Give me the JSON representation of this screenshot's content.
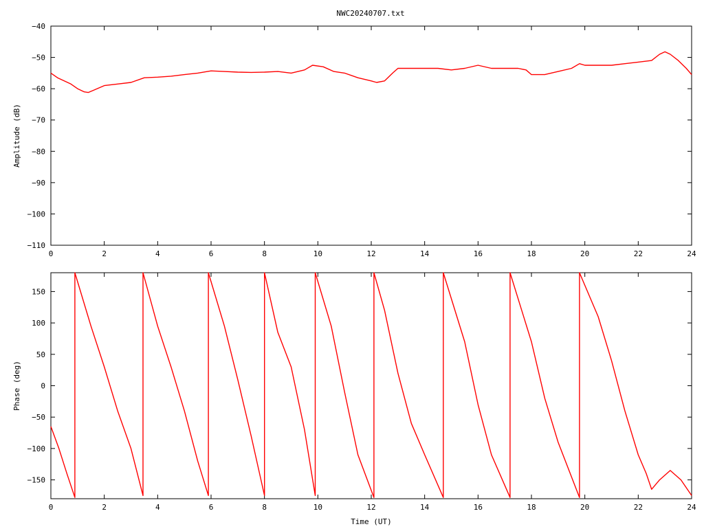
{
  "title": "NWC20240707.txt",
  "series_color": "#ff0000",
  "chart_data": [
    {
      "type": "line",
      "title": "NWC20240707.txt",
      "xlabel": "",
      "ylabel": "Amplitude (dB)",
      "xlim": [
        0,
        24
      ],
      "ylim": [
        -110,
        -40
      ],
      "xticks": [
        0,
        2,
        4,
        6,
        8,
        10,
        12,
        14,
        16,
        18,
        20,
        22,
        24
      ],
      "yticks": [
        -40,
        -50,
        -60,
        -70,
        -80,
        -90,
        -100,
        -110
      ],
      "ytick_labels": [
        "−40",
        "−50",
        "−60",
        "−70",
        "−80",
        "−90",
        "−100",
        "−110"
      ],
      "grid": false,
      "x": [
        0,
        0.25,
        0.5,
        0.75,
        1.0,
        1.25,
        1.4,
        1.6,
        2.0,
        2.5,
        3.0,
        3.5,
        4.0,
        4.5,
        5.0,
        5.5,
        6.0,
        6.5,
        7.0,
        7.5,
        8.0,
        8.5,
        9.0,
        9.5,
        9.8,
        10.2,
        10.6,
        11.0,
        11.5,
        12.0,
        12.2,
        12.5,
        12.8,
        13.0,
        13.5,
        14.0,
        14.5,
        15.0,
        15.5,
        16.0,
        16.5,
        17.0,
        17.5,
        17.8,
        18.0,
        18.5,
        19.0,
        19.5,
        19.8,
        20.0,
        20.5,
        21.0,
        21.5,
        22.0,
        22.5,
        22.8,
        23.0,
        23.2,
        23.5,
        23.8,
        24.0
      ],
      "values": [
        -55,
        -56.5,
        -57.5,
        -58.5,
        -60,
        -61,
        -61.2,
        -60.5,
        -59,
        -58.5,
        -58,
        -56.5,
        -56.3,
        -56,
        -55.5,
        -55,
        -54.3,
        -54.5,
        -54.7,
        -54.8,
        -54.7,
        -54.5,
        -55,
        -54,
        -52.5,
        -53,
        -54.5,
        -55,
        -56.5,
        -57.5,
        -58,
        -57.5,
        -55,
        -53.5,
        -53.5,
        -53.5,
        -53.5,
        -54,
        -53.5,
        -52.5,
        -53.5,
        -53.5,
        -53.5,
        -54,
        -55.5,
        -55.5,
        -54.5,
        -53.5,
        -52,
        -52.5,
        -52.5,
        -52.5,
        -52,
        -51.5,
        -51,
        -49,
        -48.2,
        -49,
        -51,
        -53.5,
        -55.5
      ]
    },
    {
      "type": "line",
      "title": "",
      "xlabel": "Time (UT)",
      "ylabel": "Phase (deg)",
      "xlim": [
        0,
        24
      ],
      "ylim": [
        -180,
        180
      ],
      "xticks": [
        0,
        2,
        4,
        6,
        8,
        10,
        12,
        14,
        16,
        18,
        20,
        22,
        24
      ],
      "yticks": [
        150,
        100,
        50,
        0,
        -50,
        -100,
        -150
      ],
      "ytick_labels": [
        "150",
        "100",
        "50",
        "0",
        "−50",
        "−100",
        "−150"
      ],
      "grid": false,
      "wraps_at_degrees": [
        -180,
        180
      ],
      "x": [
        0,
        0.3,
        0.6,
        0.9,
        0.9,
        1.5,
        2.0,
        2.5,
        3.0,
        3.45,
        3.45,
        4.0,
        4.5,
        5.0,
        5.5,
        5.9,
        5.9,
        6.5,
        7.0,
        7.5,
        8.0,
        8.0,
        8.5,
        9.0,
        9.5,
        9.9,
        9.9,
        10.5,
        11.0,
        11.5,
        12.1,
        12.1,
        12.5,
        13.0,
        13.5,
        14.0,
        14.7,
        14.7,
        15.5,
        16.0,
        16.5,
        17.2,
        17.2,
        18.0,
        18.5,
        19.0,
        19.8,
        19.8,
        20.5,
        21.0,
        21.5,
        22.0,
        22.3,
        22.5,
        22.8,
        23.2,
        23.6,
        24.0
      ],
      "values": [
        -65,
        -100,
        -140,
        -178,
        180,
        95,
        30,
        -40,
        -100,
        -175,
        180,
        95,
        30,
        -40,
        -120,
        -175,
        180,
        95,
        10,
        -80,
        -175,
        180,
        85,
        30,
        -70,
        -175,
        180,
        95,
        -10,
        -110,
        -178,
        180,
        120,
        20,
        -60,
        -110,
        -178,
        180,
        70,
        -30,
        -110,
        -178,
        180,
        70,
        -20,
        -90,
        -178,
        180,
        110,
        40,
        -40,
        -110,
        -140,
        -165,
        -150,
        -135,
        -150,
        -175
      ]
    }
  ]
}
